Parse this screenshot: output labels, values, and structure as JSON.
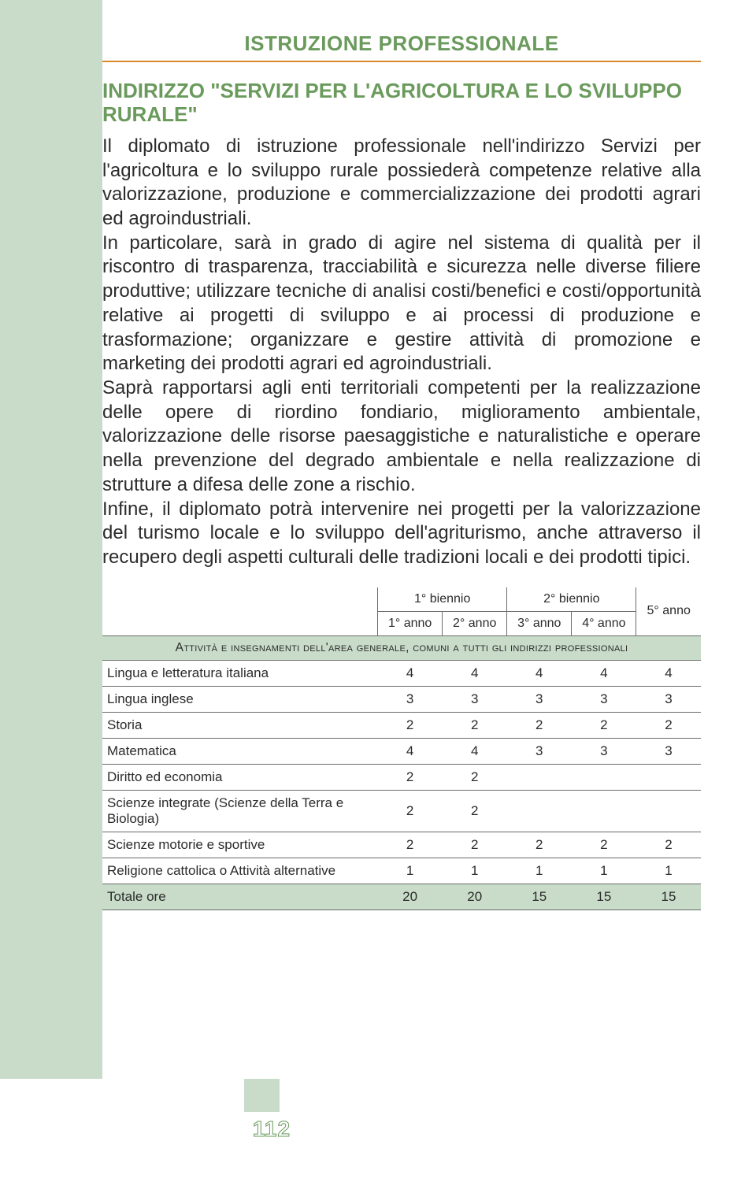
{
  "page": {
    "header": "ISTRUZIONE PROFESSIONALE",
    "section_title": "INDIRIZZO \"SERVIZI PER L'AGRICOLTURA E LO SVILUPPO RURALE\"",
    "paragraphs": [
      "Il diplomato di istruzione professionale nell'indirizzo Servizi per l'agricoltura e lo sviluppo rurale possiederà competenze relative alla valorizzazione, produzione e commercializzazione dei prodotti agrari ed agroindustriali.",
      "In particolare, sarà in grado di agire nel sistema di qualità per il riscontro di trasparenza, tracciabilità e sicurezza nelle diverse filiere produttive; utilizzare tecniche di analisi costi/benefici e costi/opportunità relative ai progetti di sviluppo e ai processi di produzione e trasformazione; organizzare e gestire attività di promozione e marketing dei prodotti agrari ed agroindustriali.",
      "Saprà rapportarsi agli enti territoriali competenti per la realizzazione delle opere di riordino fondiario, miglioramento ambientale, valorizzazione delle risorse paesaggistiche e naturalistiche e operare nella prevenzione del degrado ambientale e nella realizzazione di strutture a difesa delle zone a rischio.",
      "Infine, il diplomato potrà intervenire nei progetti per la valorizzazione del turismo locale e lo sviluppo dell'agriturismo, anche attraverso il recupero degli aspetti culturali delle tradizioni locali e dei prodotti tipici."
    ],
    "page_number": "112"
  },
  "table": {
    "header_groups": [
      "1° biennio",
      "2° biennio",
      "5° anno"
    ],
    "header_years": [
      "1° anno",
      "2° anno",
      "3° anno",
      "4° anno"
    ],
    "section_label": "Attività e insegnamenti dell'area generale, comuni a tutti gli indirizzi professionali",
    "rows": [
      {
        "subject": "Lingua e letteratura italiana",
        "h": [
          "4",
          "4",
          "4",
          "4",
          "4"
        ]
      },
      {
        "subject": "Lingua inglese",
        "h": [
          "3",
          "3",
          "3",
          "3",
          "3"
        ]
      },
      {
        "subject": "Storia",
        "h": [
          "2",
          "2",
          "2",
          "2",
          "2"
        ]
      },
      {
        "subject": "Matematica",
        "h": [
          "4",
          "4",
          "3",
          "3",
          "3"
        ]
      },
      {
        "subject": "Diritto ed economia",
        "h": [
          "2",
          "2",
          "",
          "",
          ""
        ]
      },
      {
        "subject": "Scienze integrate (Scienze della Terra e Biologia)",
        "h": [
          "2",
          "2",
          "",
          "",
          ""
        ]
      },
      {
        "subject": "Scienze motorie e sportive",
        "h": [
          "2",
          "2",
          "2",
          "2",
          "2"
        ]
      },
      {
        "subject": "Religione cattolica o Attività alternative",
        "h": [
          "1",
          "1",
          "1",
          "1",
          "1"
        ]
      }
    ],
    "total": {
      "subject": "Totale ore",
      "h": [
        "20",
        "20",
        "15",
        "15",
        "15"
      ]
    }
  },
  "style": {
    "accent_green": "#6a9a5c",
    "pale_green": "#c8dcc9",
    "orange_rule": "#d88a2a",
    "text_color": "#2b2b2b",
    "background": "#ffffff",
    "header_fontsize": 26,
    "title_fontsize": 26,
    "body_fontsize": 24,
    "table_fontsize": 17,
    "pagenum_fontsize": 28
  }
}
